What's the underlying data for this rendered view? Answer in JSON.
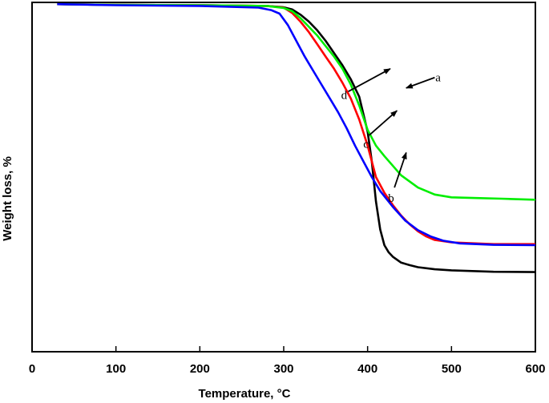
{
  "chart_data": {
    "type": "line",
    "title": "",
    "xlabel": "Temperature, °C",
    "ylabel": "Weight loss, %",
    "xlim": [
      0,
      600
    ],
    "ylim": [
      0,
      100
    ],
    "x_ticks": [
      0,
      100,
      200,
      300,
      400,
      500,
      600
    ],
    "y_ticks_shown": false,
    "grid": false,
    "legend": "none",
    "series": [
      {
        "name": "a",
        "color": "#000000",
        "x": [
          30,
          100,
          200,
          280,
          300,
          310,
          320,
          330,
          340,
          350,
          360,
          370,
          380,
          390,
          400,
          405,
          410,
          415,
          420,
          425,
          430,
          440,
          450,
          460,
          480,
          500,
          550,
          600
        ],
        "y": [
          99.5,
          99.3,
          99.2,
          99.0,
          98.6,
          98.0,
          96.5,
          94.5,
          92.0,
          89.0,
          85.5,
          82.0,
          78.0,
          73.0,
          63.0,
          54.5,
          43.0,
          35.0,
          30.5,
          28.5,
          27.2,
          25.5,
          24.8,
          24.2,
          23.6,
          23.3,
          22.9,
          22.8
        ]
      },
      {
        "name": "b",
        "color": "#ff0000",
        "x": [
          30,
          100,
          200,
          280,
          300,
          310,
          320,
          330,
          340,
          350,
          360,
          370,
          380,
          390,
          400,
          410,
          420,
          430,
          440,
          450,
          460,
          470,
          480,
          500,
          550,
          600
        ],
        "y": [
          99.5,
          99.3,
          99.2,
          99.0,
          98.5,
          97.0,
          94.5,
          91.5,
          88.0,
          84.5,
          81.0,
          77.0,
          72.5,
          66.5,
          59.0,
          50.0,
          45.5,
          42.0,
          39.0,
          36.5,
          34.5,
          33.0,
          32.0,
          31.3,
          30.8,
          30.8
        ]
      },
      {
        "name": "c",
        "color": "#00ee00",
        "x": [
          30,
          100,
          200,
          280,
          300,
          310,
          320,
          330,
          340,
          350,
          360,
          370,
          380,
          390,
          400,
          410,
          420,
          440,
          460,
          480,
          500,
          530,
          560,
          600
        ],
        "y": [
          99.5,
          99.3,
          99.2,
          99.0,
          98.4,
          97.5,
          95.5,
          93.0,
          90.5,
          87.5,
          84.5,
          81.0,
          76.5,
          70.5,
          63.5,
          59.0,
          56.0,
          50.5,
          47.0,
          45.0,
          44.2,
          44.0,
          43.8,
          43.5
        ]
      },
      {
        "name": "d",
        "color": "#0000ff",
        "x": [
          30,
          100,
          200,
          270,
          285,
          295,
          305,
          315,
          325,
          335,
          345,
          355,
          365,
          375,
          385,
          395,
          405,
          415,
          430,
          445,
          460,
          475,
          490,
          510,
          550,
          600
        ],
        "y": [
          99.5,
          99.2,
          99.0,
          98.5,
          97.8,
          96.8,
          93.5,
          89.0,
          84.5,
          80.5,
          76.5,
          72.5,
          68.5,
          64.0,
          59.0,
          54.5,
          50.0,
          46.0,
          41.5,
          37.5,
          34.8,
          33.0,
          31.8,
          31.0,
          30.6,
          30.5
        ]
      }
    ],
    "annotations": [
      {
        "label": "a",
        "text_x": 484,
        "text_y": 78.5,
        "arrow_from": [
          480,
          78.5
        ],
        "arrow_to": [
          446,
          75.5
        ]
      },
      {
        "label": "b",
        "text_x": 428,
        "text_y": 44,
        "arrow_from": [
          432,
          47
        ],
        "arrow_to": [
          446,
          57
        ]
      },
      {
        "label": "c",
        "text_x": 398,
        "text_y": 59.5,
        "arrow_from": [
          402,
          62
        ],
        "arrow_to": [
          435,
          69
        ]
      },
      {
        "label": "d",
        "text_x": 372,
        "text_y": 73.5,
        "arrow_from": [
          377,
          74.5
        ],
        "arrow_to": [
          427,
          81
        ]
      }
    ]
  }
}
